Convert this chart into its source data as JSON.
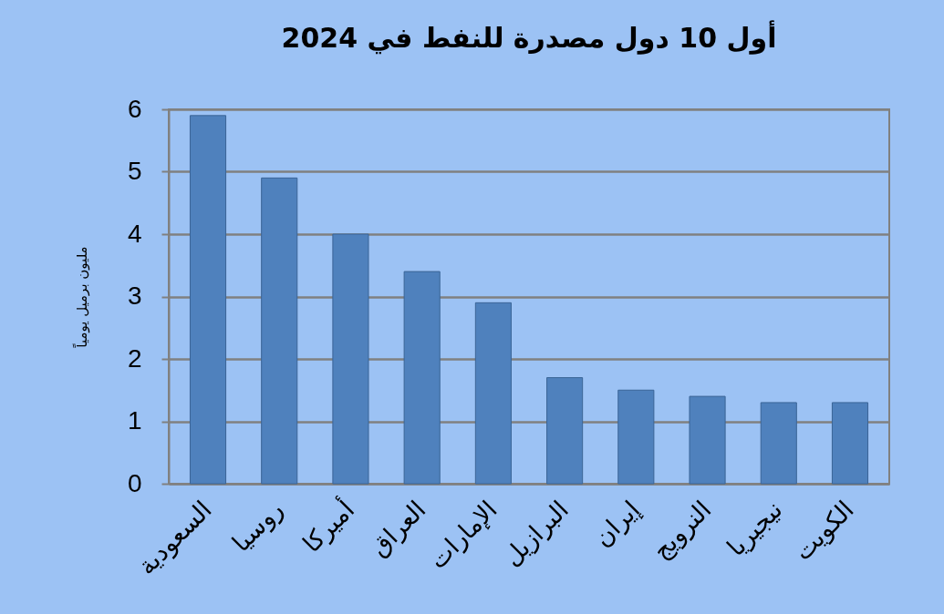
{
  "chart_data": {
    "type": "bar",
    "title": "أول 10 دول مصدرة للنفط في 2024",
    "ylabel": "مليون برميل يومياً",
    "categories": [
      "السعودية",
      "روسيا",
      "أميركا",
      "العراق",
      "الإمارات",
      "البرازيل",
      "إيران",
      "النرويج",
      "نيجيريا",
      "الكويت"
    ],
    "values": [
      5.9,
      4.9,
      4.0,
      3.4,
      2.9,
      1.7,
      1.5,
      1.4,
      1.3,
      1.3
    ],
    "color": "#4f81bd",
    "ylim": [
      0,
      6
    ],
    "yticks": [
      0,
      1,
      2,
      3,
      4,
      5,
      6
    ],
    "grid": "y"
  }
}
